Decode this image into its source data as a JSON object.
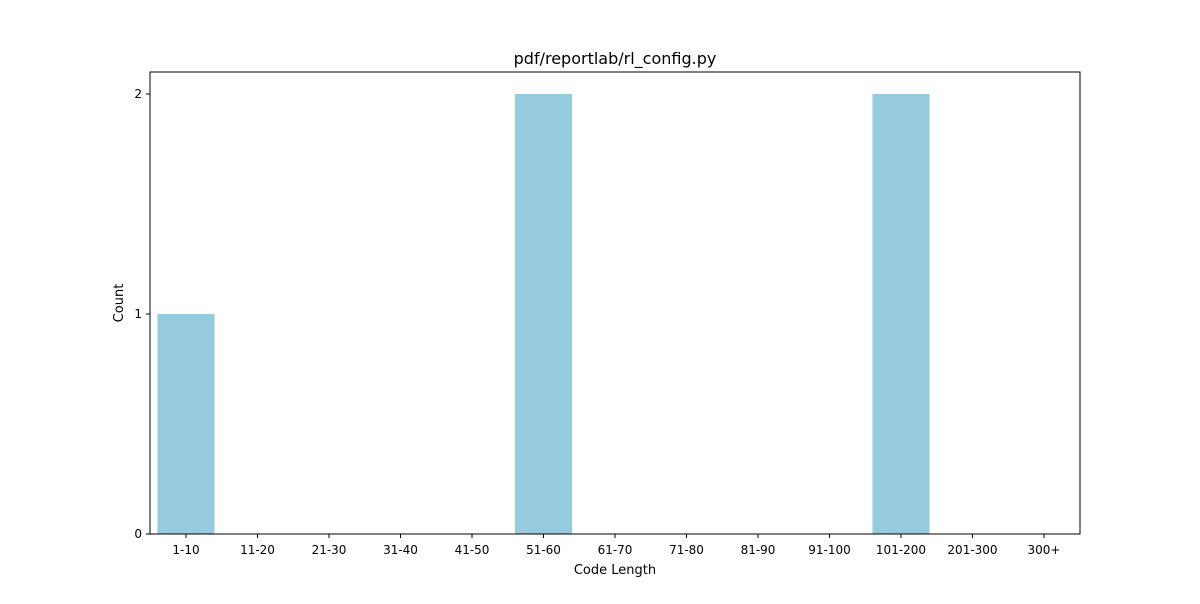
{
  "chart_data": {
    "type": "bar",
    "title": "pdf/reportlab/rl_config.py",
    "xlabel": "Code Length",
    "ylabel": "Count",
    "categories": [
      "1-10",
      "11-20",
      "21-30",
      "31-40",
      "41-50",
      "51-60",
      "61-70",
      "71-80",
      "81-90",
      "91-100",
      "101-200",
      "201-300",
      "300+"
    ],
    "values": [
      1,
      0,
      0,
      0,
      0,
      2,
      0,
      0,
      0,
      0,
      2,
      0,
      0
    ],
    "ylim": [
      0,
      2.1
    ],
    "yticks": [
      0,
      1,
      2
    ],
    "grid": false,
    "legend": false,
    "bar_color": "#96cadf"
  }
}
